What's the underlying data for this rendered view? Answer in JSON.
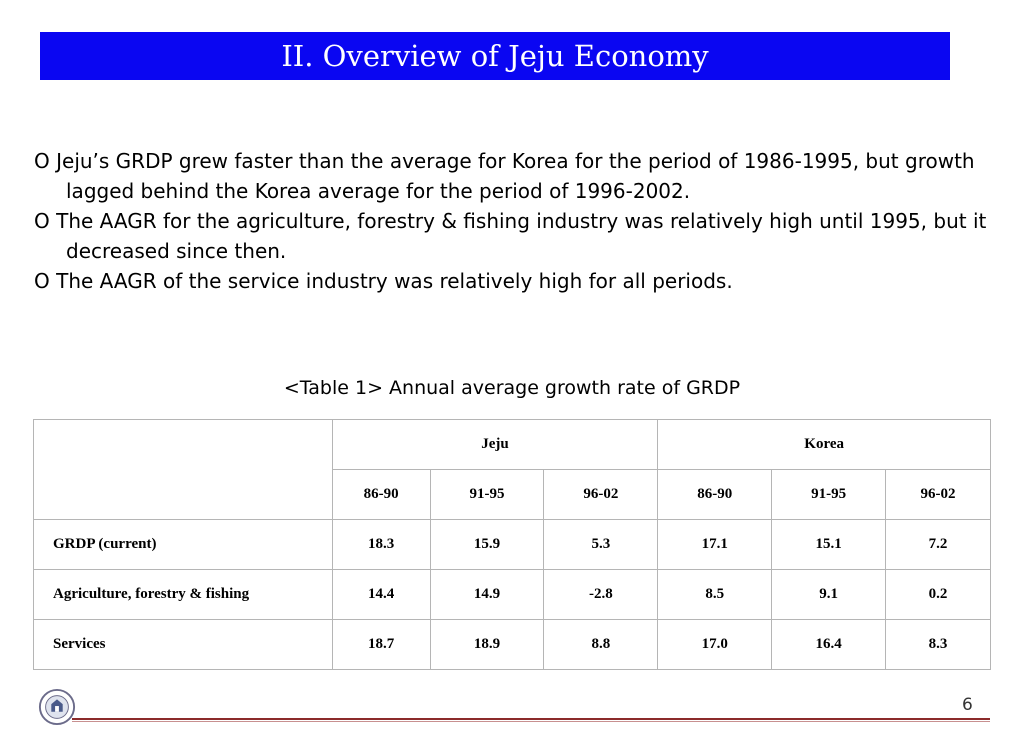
{
  "title": "II. Overview of Jeju Economy",
  "bullets": [
    {
      "marker": "O",
      "text": "Jeju’s GRDP grew faster than the average for Korea for the period of 1986-1995, but growth lagged behind the Korea average for the period of 1996-2002."
    },
    {
      "marker": "O",
      "text": "The AAGR for the agriculture, forestry & fishing industry was relatively high until 1995, but it decreased since then."
    },
    {
      "marker": "O",
      "text": "The AAGR of the service industry was relatively high for all periods."
    }
  ],
  "table": {
    "caption": "<Table 1> Annual average growth rate of GRDP",
    "groups": [
      "Jeju",
      "Korea"
    ],
    "periods": [
      "86-90",
      "91-95",
      "96-02",
      "86-90",
      "91-95",
      "96-02"
    ],
    "rows": [
      {
        "label": "GRDP (current)",
        "values": [
          "18.3",
          "15.9",
          "5.3",
          "17.1",
          "15.1",
          "7.2"
        ]
      },
      {
        "label": "Agriculture, forestry & fishing",
        "values": [
          "14.4",
          "14.9",
          "-2.8",
          "8.5",
          "9.1",
          "0.2"
        ]
      },
      {
        "label": "Services",
        "values": [
          "18.7",
          "18.9",
          "8.8",
          "17.0",
          "16.4",
          "8.3"
        ]
      }
    ]
  },
  "page_number": "6",
  "colors": {
    "title_bar": "#0a06f2",
    "footer_line": "#8b2a2a"
  },
  "seal_icon": "university-seal-icon"
}
